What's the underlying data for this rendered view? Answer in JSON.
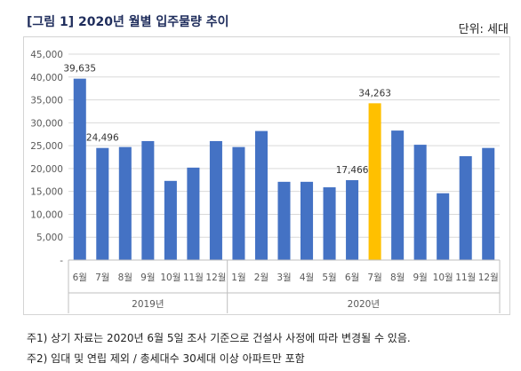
{
  "header": {
    "title": "[그림 1] 2020년 월별 입주물량 추이",
    "unit": "단위: 세대"
  },
  "notes": [
    "주1) 상기 자료는 2020년 6월 5일 조사 기준으로 건설사 사정에 따라 변경될 수 있음.",
    "주2) 임대 및 연립 제외 / 총세대수 30세대 이상 아파트만 포함"
  ],
  "colors": {
    "bar": "#4472c4",
    "highlight": "#ffc000",
    "grid": "#d9d9d9",
    "axis_text": "#595959"
  },
  "chart_data": {
    "type": "bar",
    "categories": [
      "6월",
      "7월",
      "8월",
      "9월",
      "10월",
      "11월",
      "12월",
      "1월",
      "2월",
      "3월",
      "4월",
      "5월",
      "6월",
      "7월",
      "8월",
      "9월",
      "10월",
      "11월",
      "12월"
    ],
    "groups": [
      {
        "label": "2019년",
        "count": 7
      },
      {
        "label": "2020년",
        "count": 12
      }
    ],
    "values": [
      39635,
      24496,
      24700,
      26000,
      17300,
      20200,
      26000,
      24700,
      28200,
      17100,
      17100,
      15900,
      17466,
      34263,
      28300,
      25200,
      14600,
      22700,
      24500
    ],
    "highlight_index": 13,
    "data_labels": {
      "0": "39,635",
      "1": "24,496",
      "12": "17,466",
      "13": "34,263"
    },
    "yticks": [
      "-",
      "5,000",
      "10,000",
      "15,000",
      "20,000",
      "25,000",
      "30,000",
      "35,000",
      "40,000",
      "45,000"
    ],
    "ylim": [
      0,
      45000
    ],
    "grid": true
  }
}
